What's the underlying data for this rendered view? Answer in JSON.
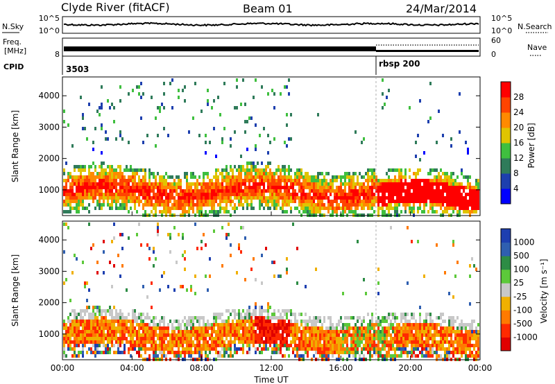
{
  "header": {
    "station": "Clyde River (fitACF)",
    "beam": "Beam 01",
    "date": "24/Mar/2014"
  },
  "status_panels": {
    "nsky_label": "N.Sky",
    "nsearch_label": "N.Search",
    "noise_ticks": [
      "10^5",
      "10^0"
    ],
    "freq_label_top": "Freq.",
    "freq_label_unit": "[MHz]",
    "freq_tick": "8",
    "nave_label": "Nave",
    "nave_ticks": [
      "60",
      "0"
    ],
    "cpid_label": "CPID",
    "cpid_values": [
      "3503",
      "rbsp 200"
    ],
    "cpid_change_hour": 18.0
  },
  "panels": {
    "time_axis_label": "Time UT",
    "range_axis_label": "Slant Range [km]",
    "power_colorbar_title": "Power [dB]",
    "power_colorbar_ticks": [
      "28",
      "24",
      "20",
      "16",
      "12",
      "8",
      "4"
    ],
    "velocity_colorbar_title": "Velocity [m s⁻¹]",
    "velocity_colorbar_ticks": [
      "1000",
      "500",
      "100",
      "25",
      "-25",
      "-100",
      "-500",
      "-1000"
    ]
  },
  "chart_data": [
    {
      "type": "heatmap",
      "name": "power",
      "x_ticks": [
        "00:00",
        "04:00",
        "08:00",
        "12:00",
        "16:00",
        "20:00",
        "00:00"
      ],
      "xlim_hours": [
        0,
        24
      ],
      "ylim_km": [
        180,
        4600
      ],
      "y_ticks": [
        1000,
        2000,
        3000,
        4000
      ],
      "colorbar": {
        "range": [
          0,
          32
        ],
        "ticks": [
          4,
          8,
          12,
          16,
          20,
          24,
          28
        ],
        "colors": [
          "#0000ff",
          "#1d3fae",
          "#2f7b5a",
          "#3fbf3f",
          "#e0c400",
          "#ff8a00",
          "#ff4400",
          "#ff0000"
        ]
      },
      "bands": [
        {
          "label": "main echo band",
          "hours": [
            0,
            24
          ],
          "range_km_approx": [
            400,
            1700
          ]
        }
      ]
    },
    {
      "type": "heatmap",
      "name": "velocity",
      "x_ticks": [
        "00:00",
        "04:00",
        "08:00",
        "12:00",
        "16:00",
        "20:00",
        "00:00"
      ],
      "xlim_hours": [
        0,
        24
      ],
      "ylim_km": [
        180,
        4600
      ],
      "y_ticks": [
        1000,
        2000,
        3000,
        4000
      ],
      "colorbar": {
        "levels": [
          1000,
          500,
          100,
          25,
          -25,
          -100,
          -500,
          -1000
        ],
        "colors": [
          "#1d3fb0",
          "#2f5fb0",
          "#2d8c45",
          "#5cc93a",
          "#c8c8c8",
          "#f0b000",
          "#ff7a00",
          "#ff2a00",
          "#e00000"
        ]
      }
    }
  ]
}
